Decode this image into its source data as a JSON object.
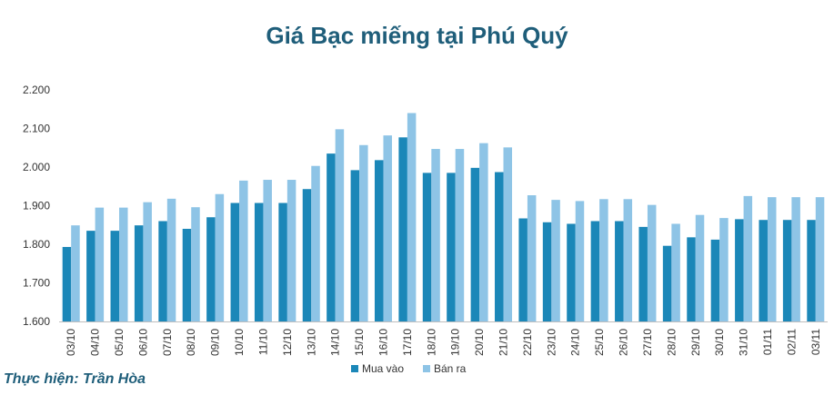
{
  "chart_data": {
    "type": "bar",
    "title": "Giá Bạc miếng tại Phú Quý",
    "credit": "Thực hiện: Trần Hòa",
    "categories": [
      "03/10",
      "04/10",
      "05/10",
      "06/10",
      "07/10",
      "08/10",
      "09/10",
      "10/10",
      "11/10",
      "12/10",
      "13/10",
      "14/10",
      "15/10",
      "16/10",
      "17/10",
      "18/10",
      "19/10",
      "20/10",
      "21/10",
      "22/10",
      "23/10",
      "24/10",
      "25/10",
      "26/10",
      "27/10",
      "28/10",
      "29/10",
      "30/10",
      "31/10",
      "01/11",
      "02/11",
      "03/11"
    ],
    "series": [
      {
        "name": "Mua vào",
        "color": "#1b87b8",
        "values": [
          1793,
          1835,
          1835,
          1849,
          1860,
          1840,
          1870,
          1907,
          1907,
          1907,
          1943,
          2035,
          1992,
          2018,
          2077,
          1985,
          1985,
          1998,
          1987,
          1867,
          1857,
          1853,
          1860,
          1860,
          1845,
          1796,
          1818,
          1812,
          1865,
          1863,
          1863,
          1863
        ]
      },
      {
        "name": "Bán ra",
        "color": "#8ec4e6",
        "values": [
          1849,
          1895,
          1895,
          1909,
          1918,
          1896,
          1930,
          1965,
          1967,
          1967,
          2003,
          2098,
          2057,
          2082,
          2140,
          2047,
          2047,
          2062,
          2051,
          1927,
          1915,
          1912,
          1917,
          1917,
          1902,
          1853,
          1876,
          1868,
          1925,
          1922,
          1922,
          1922
        ]
      }
    ],
    "yticks": [
      "1.600",
      "1.700",
      "1.800",
      "1.900",
      "2.000",
      "2.100",
      "2.200"
    ],
    "ylim": [
      1600,
      2200
    ],
    "legend": "bottom",
    "grid": false
  }
}
